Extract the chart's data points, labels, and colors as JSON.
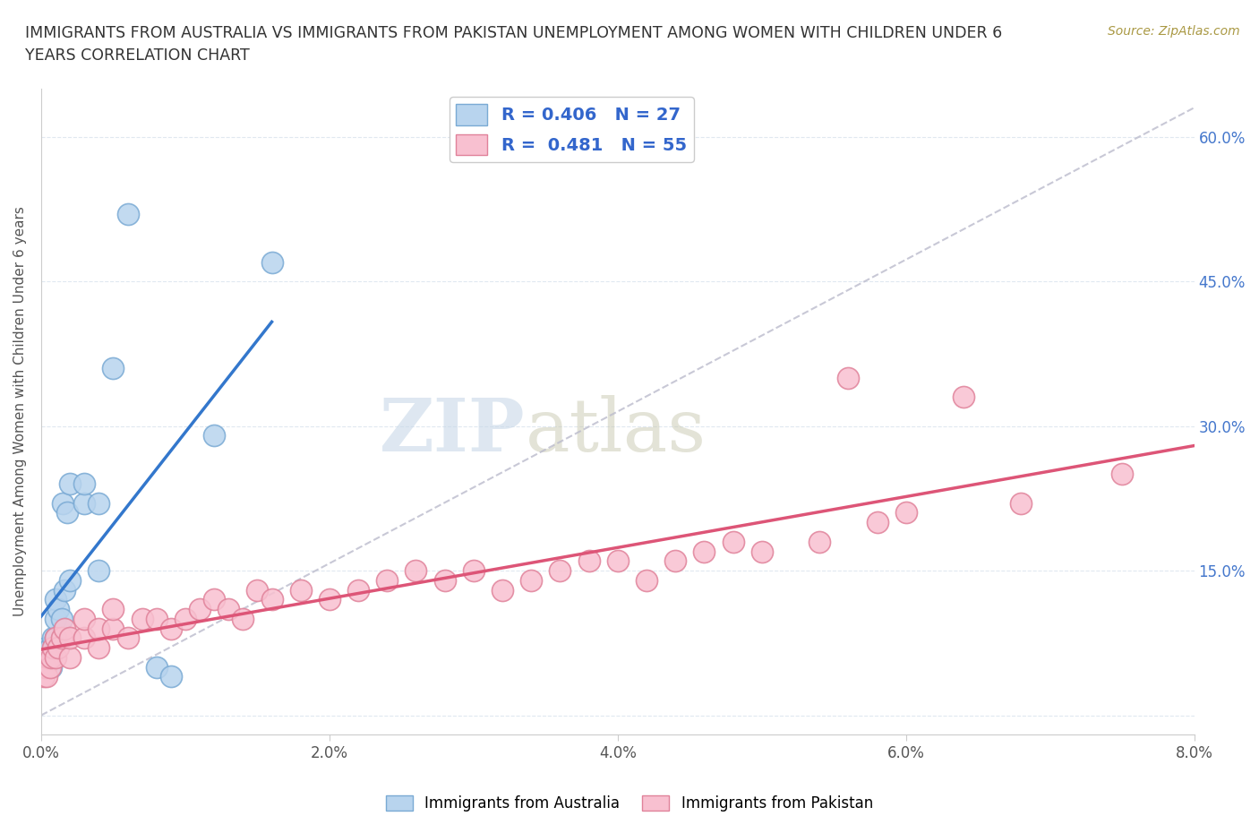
{
  "title": "IMMIGRANTS FROM AUSTRALIA VS IMMIGRANTS FROM PAKISTAN UNEMPLOYMENT AMONG WOMEN WITH CHILDREN UNDER 6\nYEARS CORRELATION CHART",
  "source": "Source: ZipAtlas.com",
  "ylabel": "Unemployment Among Women with Children Under 6 years",
  "xlim": [
    0.0,
    0.08
  ],
  "ylim": [
    -0.02,
    0.65
  ],
  "x_ticks": [
    0.0,
    0.02,
    0.04,
    0.06,
    0.08
  ],
  "x_tick_labels": [
    "0.0%",
    "2.0%",
    "4.0%",
    "6.0%",
    "8.0%"
  ],
  "y_ticks": [
    0.0,
    0.15,
    0.3,
    0.45,
    0.6
  ],
  "y_tick_labels": [
    "",
    "15.0%",
    "30.0%",
    "45.0%",
    "60.0%"
  ],
  "australia_color": "#b8d4ee",
  "australia_edge": "#7aaad4",
  "pakistan_color": "#f8c0d0",
  "pakistan_edge": "#e0829a",
  "trend_australia_color": "#3377cc",
  "trend_pakistan_color": "#dd5577",
  "diag_color": "#bbbbcc",
  "R_australia": 0.406,
  "N_australia": 27,
  "R_pakistan": 0.481,
  "N_pakistan": 55,
  "legend_label_australia": "Immigrants from Australia",
  "legend_label_pakistan": "Immigrants from Pakistan",
  "australia_x": [
    0.0002,
    0.0003,
    0.0004,
    0.0005,
    0.0006,
    0.0007,
    0.0008,
    0.001,
    0.001,
    0.001,
    0.0012,
    0.0014,
    0.0015,
    0.0016,
    0.0018,
    0.002,
    0.002,
    0.003,
    0.003,
    0.004,
    0.004,
    0.005,
    0.006,
    0.008,
    0.009,
    0.012,
    0.016
  ],
  "australia_y": [
    0.05,
    0.06,
    0.07,
    0.06,
    0.07,
    0.05,
    0.08,
    0.08,
    0.1,
    0.12,
    0.11,
    0.1,
    0.22,
    0.13,
    0.21,
    0.14,
    0.24,
    0.22,
    0.24,
    0.15,
    0.22,
    0.36,
    0.52,
    0.05,
    0.04,
    0.29,
    0.47
  ],
  "pakistan_x": [
    0.0002,
    0.0003,
    0.0004,
    0.0005,
    0.0006,
    0.0007,
    0.0008,
    0.001,
    0.001,
    0.0012,
    0.0014,
    0.0016,
    0.002,
    0.002,
    0.003,
    0.003,
    0.004,
    0.004,
    0.005,
    0.005,
    0.006,
    0.007,
    0.008,
    0.009,
    0.01,
    0.011,
    0.012,
    0.013,
    0.014,
    0.015,
    0.016,
    0.018,
    0.02,
    0.022,
    0.024,
    0.026,
    0.028,
    0.03,
    0.032,
    0.034,
    0.036,
    0.038,
    0.04,
    0.042,
    0.044,
    0.046,
    0.048,
    0.05,
    0.054,
    0.056,
    0.058,
    0.06,
    0.064,
    0.068,
    0.075
  ],
  "pakistan_y": [
    0.04,
    0.05,
    0.04,
    0.06,
    0.05,
    0.06,
    0.07,
    0.06,
    0.08,
    0.07,
    0.08,
    0.09,
    0.06,
    0.08,
    0.08,
    0.1,
    0.07,
    0.09,
    0.09,
    0.11,
    0.08,
    0.1,
    0.1,
    0.09,
    0.1,
    0.11,
    0.12,
    0.11,
    0.1,
    0.13,
    0.12,
    0.13,
    0.12,
    0.13,
    0.14,
    0.15,
    0.14,
    0.15,
    0.13,
    0.14,
    0.15,
    0.16,
    0.16,
    0.14,
    0.16,
    0.17,
    0.18,
    0.17,
    0.18,
    0.35,
    0.2,
    0.21,
    0.33,
    0.22,
    0.25
  ],
  "background_color": "#ffffff",
  "grid_color": "#e0e8f0"
}
